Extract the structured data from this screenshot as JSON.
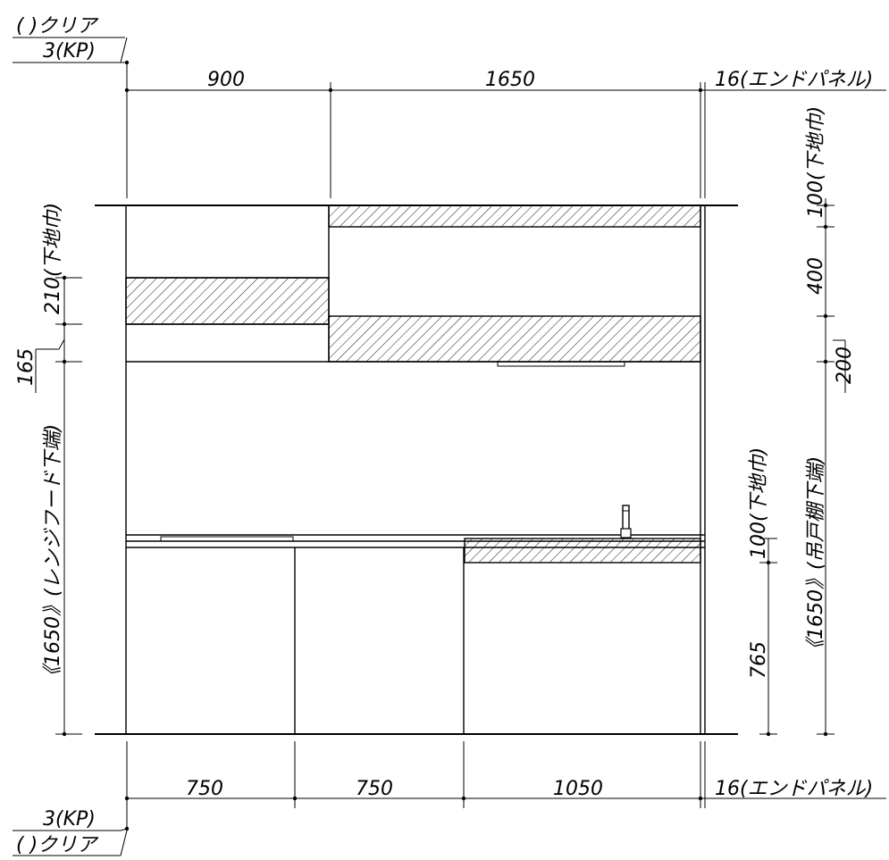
{
  "labels": {
    "top_clear": "(    )クリア",
    "top_kp": "3(KP)",
    "bottom_kp": "3(KP)",
    "bottom_clear": "(    )クリア",
    "top_end_panel": "16(エンドパネル)",
    "bottom_end_panel": "16(エンドパネル)"
  },
  "top_dims": {
    "left": "900",
    "right": "1650"
  },
  "bottom_dims": {
    "d1": "750",
    "d2": "750",
    "d3": "1050"
  },
  "left_dims": {
    "shitaji_210": "210(下地巾)",
    "dim_165": "165",
    "hood_height": "《1650》(レンジフード下端)"
  },
  "right_dims": {
    "shitaji_100_top": "100(下地巾)",
    "dim_400": "400",
    "dim_200": "200",
    "wall_cab_height": "《1650》(吊戸棚下端)",
    "shitaji_100_bottom": "100(下地巾)",
    "dim_765": "765"
  }
}
